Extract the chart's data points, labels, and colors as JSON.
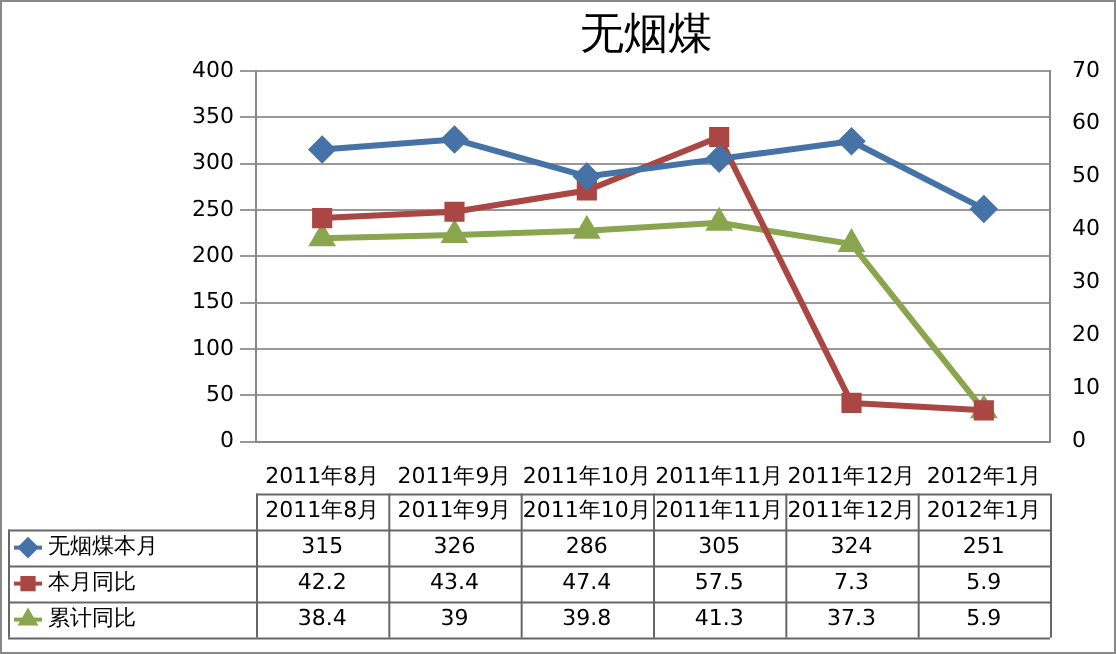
{
  "chart_data": {
    "type": "line",
    "title": "无烟煤",
    "categories": [
      "2011年8月",
      "2011年9月",
      "2011年10月",
      "2011年11月",
      "2011年12月",
      "2012年1月"
    ],
    "series": [
      {
        "name": "无烟煤本月",
        "color": "#4572a7",
        "marker": "diamond",
        "values": [
          315,
          326,
          286,
          305,
          324,
          251
        ]
      },
      {
        "name": "本月同比",
        "color": "#aa4643",
        "marker": "square",
        "axis": "y2",
        "values": [
          42.2,
          43.4,
          47.4,
          57.5,
          7.3,
          5.9
        ]
      },
      {
        "name": "累计同比",
        "color": "#89a54e",
        "marker": "triangle",
        "axis": "y2",
        "values": [
          38.4,
          39,
          39.8,
          41.3,
          37.3,
          5.9
        ]
      }
    ],
    "ylim": [
      0,
      400
    ],
    "yticks": [
      0,
      50,
      100,
      150,
      200,
      250,
      300,
      350,
      400
    ],
    "y2lim": [
      0,
      70
    ],
    "y2ticks": [
      0,
      10,
      20,
      30,
      40,
      50,
      60,
      70
    ],
    "grid": "y",
    "legend": "bottom left",
    "data_labels": true
  }
}
